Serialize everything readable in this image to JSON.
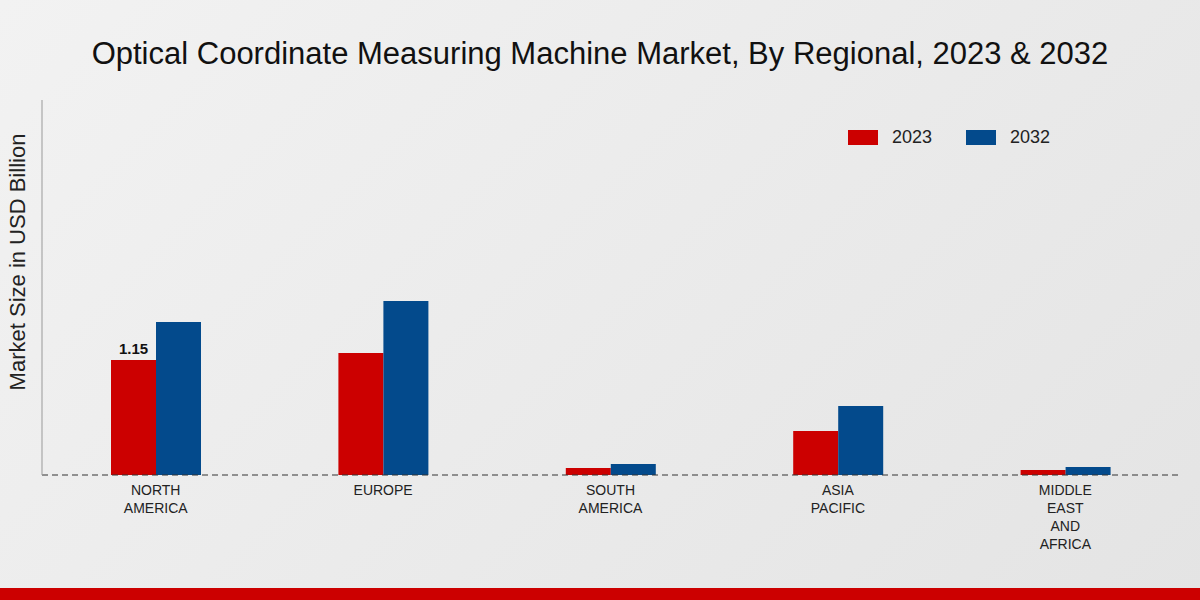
{
  "chart_data": {
    "type": "bar",
    "title": "Optical Coordinate Measuring Machine Market, By Regional, 2023 & 2032",
    "y_label": "Market Size in USD Billion",
    "categories": [
      "NORTH AMERICA",
      "EUROPE",
      "SOUTH AMERICA",
      "ASIA PACIFIC",
      "MIDDLE EAST AND AFRICA"
    ],
    "series": [
      {
        "name": "2023",
        "color": "#cc0000",
        "values": [
          1.15,
          1.22,
          0.07,
          0.44,
          0.05
        ],
        "value_labels": [
          "1.15",
          null,
          null,
          null,
          null
        ]
      },
      {
        "name": "2032",
        "color": "#034a8c",
        "values": [
          1.53,
          1.74,
          0.11,
          0.69,
          0.08
        ]
      }
    ],
    "ylim": [
      0,
      3.75
    ],
    "tick_labels": "x",
    "legend": "upper right"
  }
}
